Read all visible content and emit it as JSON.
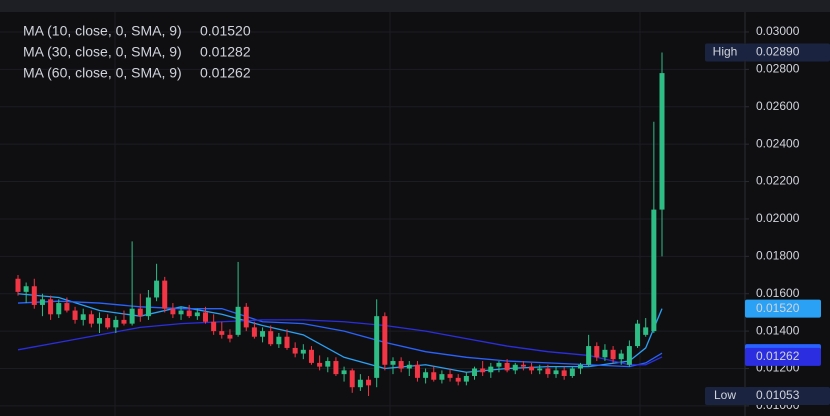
{
  "chart_data": {
    "type": "candlestick",
    "ylim": [
      0.00946,
      0.03171
    ],
    "yticks": [
      {
        "value": 0.03,
        "label": "0.03000"
      },
      {
        "value": 0.028,
        "label": "0.02800"
      },
      {
        "value": 0.026,
        "label": "0.02600"
      },
      {
        "value": 0.024,
        "label": "0.02400"
      },
      {
        "value": 0.022,
        "label": "0.02200"
      },
      {
        "value": 0.02,
        "label": "0.02000"
      },
      {
        "value": 0.018,
        "label": "0.01800"
      },
      {
        "value": 0.016,
        "label": "0.01600"
      },
      {
        "value": 0.014,
        "label": "0.01400"
      },
      {
        "value": 0.012,
        "label": "0.01200"
      },
      {
        "value": 0.01,
        "label": "0.01000"
      }
    ],
    "grid": true,
    "up_color": "#2ebd85",
    "down_color": "#f23645",
    "ohlc": [
      [
        0.0168,
        0.017,
        0.0159,
        0.0161
      ],
      [
        0.0161,
        0.0166,
        0.0155,
        0.0164
      ],
      [
        0.0164,
        0.0168,
        0.0152,
        0.0154
      ],
      [
        0.0154,
        0.016,
        0.0148,
        0.0157
      ],
      [
        0.0157,
        0.0159,
        0.0146,
        0.0149
      ],
      [
        0.0149,
        0.0157,
        0.0147,
        0.0155
      ],
      [
        0.0155,
        0.0158,
        0.015,
        0.0151
      ],
      [
        0.0151,
        0.0153,
        0.0144,
        0.0146
      ],
      [
        0.0146,
        0.0152,
        0.0143,
        0.0149
      ],
      [
        0.0149,
        0.0151,
        0.0142,
        0.0144
      ],
      [
        0.0144,
        0.015,
        0.0139,
        0.0147
      ],
      [
        0.0147,
        0.0149,
        0.0141,
        0.0142
      ],
      [
        0.0142,
        0.0148,
        0.0139,
        0.0146
      ],
      [
        0.0146,
        0.0151,
        0.0143,
        0.0144
      ],
      [
        0.0144,
        0.0188,
        0.0143,
        0.0152
      ],
      [
        0.0152,
        0.016,
        0.0145,
        0.0148
      ],
      [
        0.0148,
        0.0162,
        0.0146,
        0.0158
      ],
      [
        0.0158,
        0.0176,
        0.0156,
        0.0167
      ],
      [
        0.0167,
        0.0169,
        0.015,
        0.0152
      ],
      [
        0.0152,
        0.0155,
        0.0147,
        0.0149
      ],
      [
        0.0149,
        0.0153,
        0.0146,
        0.0151
      ],
      [
        0.0151,
        0.0154,
        0.0147,
        0.0148
      ],
      [
        0.0148,
        0.0152,
        0.0146,
        0.015
      ],
      [
        0.015,
        0.0153,
        0.0144,
        0.0145
      ],
      [
        0.0145,
        0.0149,
        0.0138,
        0.014
      ],
      [
        0.014,
        0.0145,
        0.0136,
        0.0138
      ],
      [
        0.0138,
        0.0141,
        0.0134,
        0.0136
      ],
      [
        0.0138,
        0.0177,
        0.0137,
        0.0153
      ],
      [
        0.0153,
        0.0155,
        0.014,
        0.0142
      ],
      [
        0.0142,
        0.0145,
        0.0136,
        0.0137
      ],
      [
        0.0137,
        0.0142,
        0.0134,
        0.014
      ],
      [
        0.014,
        0.0143,
        0.0132,
        0.0133
      ],
      [
        0.0133,
        0.0139,
        0.0131,
        0.0137
      ],
      [
        0.0137,
        0.0141,
        0.013,
        0.0131
      ],
      [
        0.0131,
        0.0134,
        0.0126,
        0.0128
      ],
      [
        0.0128,
        0.0133,
        0.0125,
        0.013
      ],
      [
        0.013,
        0.0132,
        0.0122,
        0.0123
      ],
      [
        0.0123,
        0.0127,
        0.0119,
        0.0121
      ],
      [
        0.0121,
        0.0126,
        0.0118,
        0.0124
      ],
      [
        0.0124,
        0.0126,
        0.0116,
        0.0117
      ],
      [
        0.0117,
        0.0121,
        0.0113,
        0.0119
      ],
      [
        0.0119,
        0.012,
        0.0107,
        0.011
      ],
      [
        0.011,
        0.0117,
        0.0108,
        0.0114
      ],
      [
        0.0114,
        0.0116,
        0.01053,
        0.0111
      ],
      [
        0.0115,
        0.0157,
        0.011,
        0.0148
      ],
      [
        0.0148,
        0.015,
        0.0119,
        0.0122
      ],
      [
        0.0122,
        0.0126,
        0.0117,
        0.0124
      ],
      [
        0.0124,
        0.0126,
        0.0118,
        0.012
      ],
      [
        0.012,
        0.0124,
        0.0116,
        0.0122
      ],
      [
        0.0122,
        0.0124,
        0.0113,
        0.0115
      ],
      [
        0.0115,
        0.012,
        0.0112,
        0.0118
      ],
      [
        0.0118,
        0.0121,
        0.0113,
        0.0114
      ],
      [
        0.0114,
        0.0119,
        0.0112,
        0.0117
      ],
      [
        0.0117,
        0.012,
        0.0113,
        0.0115
      ],
      [
        0.0115,
        0.0117,
        0.0111,
        0.0113
      ],
      [
        0.0113,
        0.0118,
        0.0111,
        0.0116
      ],
      [
        0.0116,
        0.0121,
        0.0114,
        0.012
      ],
      [
        0.012,
        0.0124,
        0.0116,
        0.0118
      ],
      [
        0.0118,
        0.0123,
        0.0115,
        0.0121
      ],
      [
        0.0121,
        0.0124,
        0.0118,
        0.0123
      ],
      [
        0.0123,
        0.0125,
        0.0118,
        0.0119
      ],
      [
        0.0119,
        0.0123,
        0.0117,
        0.0122
      ],
      [
        0.0122,
        0.0124,
        0.0119,
        0.0121
      ],
      [
        0.0121,
        0.0123,
        0.0117,
        0.0119
      ],
      [
        0.0119,
        0.0122,
        0.0117,
        0.012
      ],
      [
        0.012,
        0.0122,
        0.0115,
        0.0117
      ],
      [
        0.0117,
        0.0121,
        0.0115,
        0.0119
      ],
      [
        0.0119,
        0.0121,
        0.0114,
        0.0116
      ],
      [
        0.0116,
        0.0121,
        0.0115,
        0.012
      ],
      [
        0.012,
        0.0123,
        0.0117,
        0.0122
      ],
      [
        0.0122,
        0.0138,
        0.0121,
        0.0132
      ],
      [
        0.0132,
        0.0134,
        0.0124,
        0.0126
      ],
      [
        0.0126,
        0.0133,
        0.0124,
        0.013
      ],
      [
        0.013,
        0.0132,
        0.0123,
        0.0125
      ],
      [
        0.0125,
        0.013,
        0.0122,
        0.0128
      ],
      [
        0.0122,
        0.0135,
        0.0121,
        0.0132
      ],
      [
        0.0132,
        0.0146,
        0.0131,
        0.0144
      ],
      [
        0.0138,
        0.0147,
        0.0137,
        0.0142
      ],
      [
        0.014,
        0.0252,
        0.0139,
        0.0205
      ],
      [
        0.0205,
        0.0289,
        0.018,
        0.0278
      ]
    ],
    "ma_x": [
      0,
      5,
      10,
      15,
      20,
      25,
      30,
      35,
      40,
      45,
      50,
      55,
      60,
      65,
      70,
      75,
      77,
      79
    ],
    "series": [
      {
        "name": "MA (10, close, 0, SMA, 9)",
        "value_label": "0.01520",
        "color": "#2aa1f5",
        "values": [
          0.016,
          0.0158,
          0.0151,
          0.0148,
          0.0153,
          0.0149,
          0.0143,
          0.0138,
          0.0126,
          0.012,
          0.0122,
          0.0118,
          0.012,
          0.0121,
          0.0121,
          0.0124,
          0.0131,
          0.0152
        ]
      },
      {
        "name": "MA (30, close, 0, SMA, 9)",
        "value_label": "0.01282",
        "color": "#2962ff",
        "values": [
          0.0155,
          0.0156,
          0.0155,
          0.0153,
          0.0152,
          0.0152,
          0.0145,
          0.0144,
          0.014,
          0.0134,
          0.0129,
          0.0126,
          0.0124,
          0.0123,
          0.0122,
          0.0121,
          0.0123,
          0.01282
        ]
      },
      {
        "name": "MA (60, close, 0, SMA, 9)",
        "value_label": "0.01262",
        "color": "#2a2ee0",
        "values": [
          0.013,
          0.0134,
          0.0138,
          0.0142,
          0.0144,
          0.0145,
          0.0146,
          0.0146,
          0.0145,
          0.0143,
          0.014,
          0.0136,
          0.0132,
          0.0129,
          0.0127,
          0.0122,
          0.0122,
          0.01262
        ]
      }
    ],
    "high": {
      "label": "High",
      "value": 0.0289,
      "value_label": "0.02890"
    },
    "low": {
      "label": "Low",
      "value": 0.01053,
      "value_label": "0.01053"
    }
  }
}
